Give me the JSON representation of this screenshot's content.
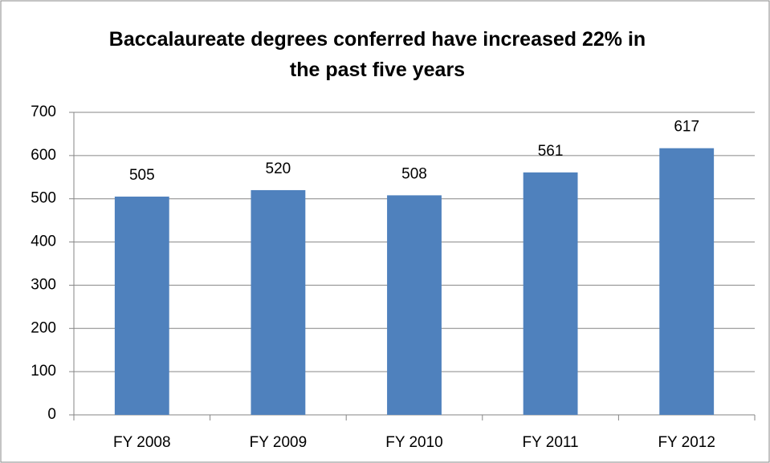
{
  "chart_data": {
    "type": "bar",
    "title": "Baccalaureate degrees conferred have increased 22% in the past five years",
    "categories": [
      "FY 2008",
      "FY 2009",
      "FY 2010",
      "FY 2011",
      "FY 2012"
    ],
    "values": [
      505,
      520,
      508,
      561,
      617
    ],
    "color": "#4f81bd",
    "ylim": [
      0,
      700
    ],
    "yticks": [
      0,
      100,
      200,
      300,
      400,
      500,
      600,
      700
    ],
    "grid": true
  }
}
